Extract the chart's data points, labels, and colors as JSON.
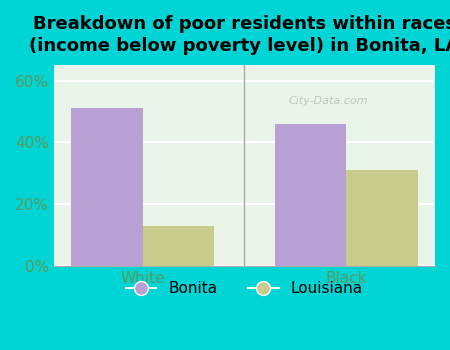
{
  "title": "Breakdown of poor residents within races\n(income below poverty level) in Bonita, LA",
  "categories": [
    "White",
    "Black"
  ],
  "bonita_values": [
    51.0,
    46.0
  ],
  "louisiana_values": [
    13.0,
    31.0
  ],
  "bonita_color": "#b89fd4",
  "louisiana_color": "#c8cc8a",
  "bar_width": 0.35,
  "ylim": [
    0,
    65
  ],
  "yticks": [
    0,
    20,
    40,
    60
  ],
  "yticklabels": [
    "0%",
    "20%",
    "40%",
    "60%"
  ],
  "background_outer": "#00d4d4",
  "plot_bg": "#eaf5ea",
  "tick_color": "#5a9a5a",
  "title_fontsize": 13,
  "tick_fontsize": 11,
  "legend_labels": [
    "Bonita",
    "Louisiana"
  ],
  "watermark": "City-Data.com"
}
